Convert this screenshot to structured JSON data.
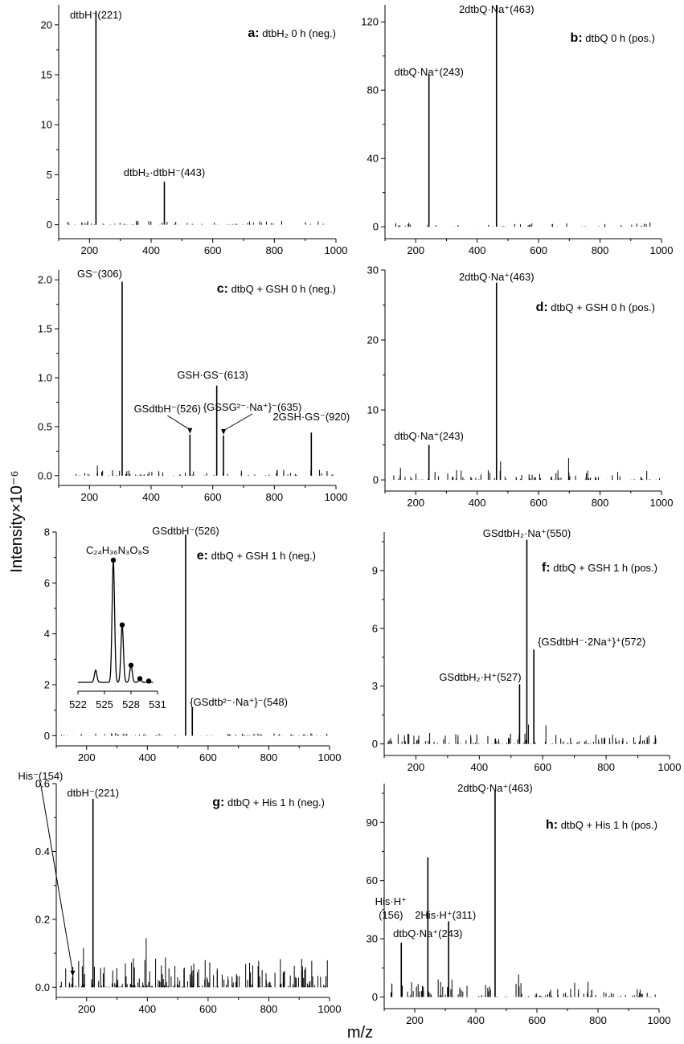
{
  "figure": {
    "ylabel": "Intensity×10⁻⁶",
    "xlabel": "m/z"
  },
  "chart_data": [
    {
      "type": "bar",
      "id": "a",
      "letter": "a:",
      "title": "dtbH₂ 0 h (neg.)",
      "xlim": [
        100,
        1000
      ],
      "ylim": [
        -1.4,
        22
      ],
      "xticks": [
        200,
        400,
        600,
        800,
        1000
      ],
      "yticks": [
        0,
        5,
        10,
        15,
        20
      ],
      "peaks": [
        {
          "x": 221,
          "y": 21.4,
          "label": "dtbH⁻(221)"
        },
        {
          "x": 443,
          "y": 4.3,
          "label": "dtbH₂·dtbH⁻(443)"
        }
      ]
    },
    {
      "type": "bar",
      "id": "b",
      "letter": "b:",
      "title": "dtbQ 0 h (pos.)",
      "xlim": [
        100,
        1000
      ],
      "ylim": [
        -7,
        130
      ],
      "xticks": [
        200,
        400,
        600,
        800,
        1000
      ],
      "yticks": [
        0,
        40,
        80,
        120
      ],
      "peaks": [
        {
          "x": 243,
          "y": 89,
          "label": "dtbQ·Na⁺(243)"
        },
        {
          "x": 463,
          "y": 130,
          "label": "2dtbQ·Na⁺(463)"
        }
      ]
    },
    {
      "type": "bar",
      "id": "c",
      "letter": "c:",
      "title": "dtbQ + GSH 0 h (neg.)",
      "xlim": [
        100,
        1000
      ],
      "ylim": [
        -0.1,
        2.1
      ],
      "xticks": [
        200,
        400,
        600,
        800,
        1000
      ],
      "yticks": [
        0.0,
        0.5,
        1.0,
        1.5,
        2.0
      ],
      "peaks": [
        {
          "x": 306,
          "y": 1.98,
          "label": "GS⁻(306)"
        },
        {
          "x": 526,
          "y": 0.42,
          "label": "GSdtbH⁻(526)"
        },
        {
          "x": 613,
          "y": 0.92,
          "label": "GSH·GS⁻(613)"
        },
        {
          "x": 635,
          "y": 0.41,
          "label": "{GSSG²⁻·Na⁺}⁻(635)"
        },
        {
          "x": 920,
          "y": 0.44,
          "label": "2GSH·GS⁻(920)"
        }
      ]
    },
    {
      "type": "bar",
      "id": "d",
      "letter": "d:",
      "title": "dtbQ + GSH 0 h (pos.)",
      "xlim": [
        100,
        1000
      ],
      "ylim": [
        -1.6,
        30
      ],
      "xticks": [
        200,
        400,
        600,
        800,
        1000
      ],
      "yticks": [
        0,
        10,
        20,
        30
      ],
      "peaks": [
        {
          "x": 243,
          "y": 5.0,
          "label": "dtbQ·Na⁺(243)"
        },
        {
          "x": 463,
          "y": 28.2,
          "label": "2dtbQ·Na⁺(463)"
        }
      ]
    },
    {
      "type": "bar",
      "id": "e",
      "letter": "e:",
      "title": "dtbQ + GSH 1 h (neg.)",
      "xlim": [
        100,
        1000
      ],
      "ylim": [
        -0.4,
        8
      ],
      "xticks": [
        200,
        400,
        600,
        800,
        1000
      ],
      "yticks": [
        0,
        2,
        4,
        6,
        8
      ],
      "peaks": [
        {
          "x": 526,
          "y": 7.9,
          "label": "GSdtbH⁻(526)"
        },
        {
          "x": 548,
          "y": 1.1,
          "label": "{GSdtb²⁻·Na⁺}⁻(548)"
        }
      ],
      "inset": {
        "formula": "C₂₄H₃₆N₃O₈S",
        "xticks": [
          522,
          525,
          528,
          531
        ],
        "x": [
          524,
          526,
          527,
          528,
          529,
          530
        ],
        "y": [
          0.1,
          1.0,
          0.47,
          0.14,
          0.03,
          0.01
        ]
      }
    },
    {
      "type": "bar",
      "id": "f",
      "letter": "f:",
      "title": "dtbQ + GSH 1 h (pos.)",
      "xlim": [
        100,
        1000
      ],
      "ylim": [
        -0.6,
        11
      ],
      "xticks": [
        200,
        400,
        600,
        800,
        1000
      ],
      "yticks": [
        0,
        3,
        6,
        9
      ],
      "peaks": [
        {
          "x": 527,
          "y": 3.1,
          "label": "GSdtbH₂·H⁺(527)"
        },
        {
          "x": 550,
          "y": 10.6,
          "label": "GSdtbH₂·Na⁺(550)"
        },
        {
          "x": 572,
          "y": 4.9,
          "label": "{GSdtbH⁻·2Na⁺}⁺(572)"
        }
      ]
    },
    {
      "type": "bar",
      "id": "g",
      "letter": "g:",
      "title": "dtbQ + His 1 h (neg.)",
      "xlim": [
        100,
        1000
      ],
      "ylim": [
        -0.03,
        0.6
      ],
      "xticks": [
        200,
        400,
        600,
        800,
        1000
      ],
      "yticks": [
        0.0,
        0.2,
        0.4,
        0.6
      ],
      "peaks": [
        {
          "x": 154,
          "y": 0.03,
          "label": "His⁻(154)"
        },
        {
          "x": 221,
          "y": 0.555,
          "label": "dtbH⁻(221)"
        }
      ]
    },
    {
      "type": "bar",
      "id": "h",
      "letter": "h:",
      "title": "dtbQ + His 1 h (pos.)",
      "xlim": [
        100,
        1000
      ],
      "ylim": [
        -6,
        110
      ],
      "xticks": [
        200,
        400,
        600,
        800,
        1000
      ],
      "yticks": [
        0,
        30,
        60,
        90
      ],
      "peaks": [
        {
          "x": 156,
          "y": 28,
          "label": "His·H⁺(156)"
        },
        {
          "x": 243,
          "y": 72,
          "label": "dtbQ·Na⁺(243)"
        },
        {
          "x": 311,
          "y": 39,
          "label": "2His·H⁺(311)"
        },
        {
          "x": 463,
          "y": 106,
          "label": "2dtbQ·Na⁺(463)"
        }
      ]
    }
  ]
}
